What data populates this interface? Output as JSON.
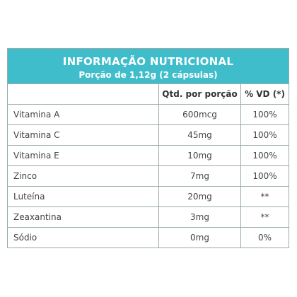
{
  "header": {
    "title": "INFORMAÇÃO NUTRICIONAL",
    "subtitle": "Porção de 1,12g (2 cápsulas)"
  },
  "table": {
    "columns": [
      "Qtd. por porção",
      "% VD (*)"
    ],
    "rows": [
      [
        "Vitamina A",
        "600mcg",
        "100%"
      ],
      [
        "Vitamina C",
        "45mg",
        "100%"
      ],
      [
        "Vitamina E",
        "10mg",
        "100%"
      ],
      [
        "Zinco",
        "7mg",
        "100%"
      ],
      [
        "Luteína",
        "20mg",
        "**"
      ],
      [
        "Zeaxantina",
        "3mg",
        "**"
      ],
      [
        "Sódio",
        "0mg",
        "0%"
      ]
    ]
  }
}
